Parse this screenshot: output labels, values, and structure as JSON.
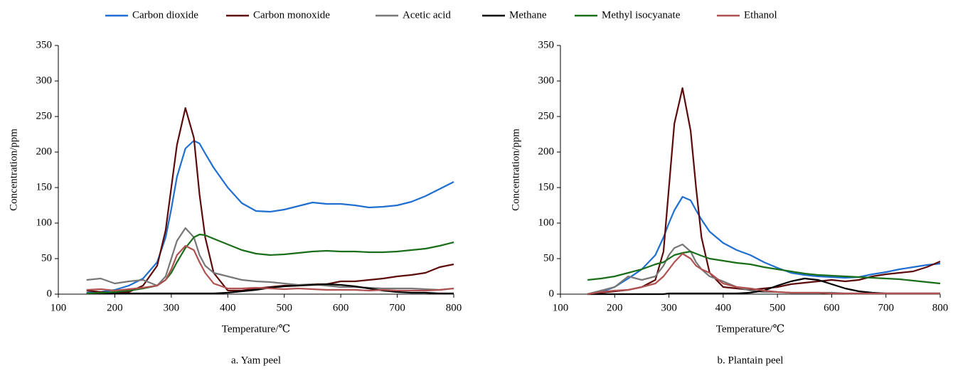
{
  "chart_data": [
    {
      "type": "line",
      "title": "a. Yam peel",
      "x_label": "Temperature/℃",
      "y_label": "Concentration/ppm",
      "xlim": [
        100,
        800
      ],
      "xticks": [
        100,
        200,
        300,
        400,
        500,
        600,
        700,
        800
      ],
      "ylim": [
        0,
        350
      ],
      "yticks": [
        0,
        50,
        100,
        150,
        200,
        250,
        300,
        350
      ],
      "x": [
        150,
        175,
        200,
        225,
        250,
        275,
        290,
        300,
        310,
        325,
        340,
        350,
        360,
        375,
        400,
        425,
        450,
        475,
        500,
        525,
        550,
        575,
        600,
        625,
        650,
        675,
        700,
        725,
        750,
        775,
        800
      ],
      "series": [
        {
          "name": "Carbon dioxide",
          "color": "#1f6fd1",
          "values": [
            2,
            3,
            6,
            12,
            22,
            45,
            80,
            120,
            165,
            205,
            216,
            212,
            198,
            178,
            150,
            128,
            117,
            116,
            119,
            124,
            129,
            127,
            127,
            125,
            122,
            123,
            125,
            130,
            138,
            148,
            158
          ]
        },
        {
          "name": "Carbon monoxide",
          "color": "#5c0a0a",
          "values": [
            5,
            3,
            2,
            3,
            12,
            40,
            90,
            150,
            210,
            262,
            220,
            140,
            80,
            30,
            5,
            5,
            8,
            10,
            12,
            12,
            14,
            14,
            18,
            18,
            20,
            22,
            25,
            27,
            30,
            38,
            42
          ]
        },
        {
          "name": "Acetic acid",
          "color": "#777777",
          "values": [
            20,
            22,
            15,
            18,
            20,
            12,
            25,
            50,
            75,
            93,
            80,
            55,
            40,
            30,
            25,
            20,
            18,
            17,
            15,
            13,
            14,
            12,
            10,
            10,
            9,
            8,
            8,
            8,
            7,
            6,
            8
          ]
        },
        {
          "name": "Methane",
          "color": "#000000",
          "values": [
            1,
            1,
            1,
            1,
            1,
            1,
            1,
            1,
            1,
            1,
            1,
            1,
            1,
            1,
            2,
            4,
            6,
            9,
            11,
            12,
            13,
            14,
            13,
            11,
            8,
            5,
            3,
            2,
            2,
            1,
            1
          ]
        },
        {
          "name": "Methyl isocyanate",
          "color": "#1a6e1a",
          "values": [
            1,
            2,
            3,
            5,
            8,
            12,
            20,
            30,
            45,
            65,
            80,
            84,
            83,
            78,
            70,
            62,
            57,
            55,
            56,
            58,
            60,
            61,
            60,
            60,
            59,
            59,
            60,
            62,
            64,
            68,
            73
          ]
        },
        {
          "name": "Ethanol",
          "color": "#b05050",
          "values": [
            6,
            7,
            5,
            7,
            9,
            12,
            20,
            35,
            55,
            68,
            62,
            45,
            30,
            15,
            8,
            8,
            9,
            8,
            7,
            8,
            7,
            6,
            6,
            6,
            5,
            6,
            5,
            5,
            5,
            6,
            8
          ]
        }
      ]
    },
    {
      "type": "line",
      "title": "b. Plantain peel",
      "x_label": "Temperature/℃",
      "y_label": "Concentration/ppm",
      "xlim": [
        100,
        800
      ],
      "xticks": [
        100,
        200,
        300,
        400,
        500,
        600,
        700,
        800
      ],
      "ylim": [
        0,
        350
      ],
      "yticks": [
        0,
        50,
        100,
        150,
        200,
        250,
        300,
        350
      ],
      "x": [
        150,
        175,
        200,
        225,
        250,
        275,
        290,
        300,
        310,
        325,
        340,
        350,
        360,
        375,
        400,
        425,
        450,
        475,
        500,
        525,
        550,
        575,
        600,
        625,
        650,
        675,
        700,
        725,
        750,
        775,
        800
      ],
      "series": [
        {
          "name": "Carbon dioxide",
          "color": "#1f6fd1",
          "values": [
            0,
            3,
            10,
            22,
            35,
            55,
            80,
            100,
            118,
            137,
            132,
            118,
            105,
            88,
            72,
            62,
            55,
            45,
            37,
            30,
            27,
            25,
            24,
            23,
            24,
            28,
            31,
            35,
            38,
            41,
            43
          ]
        },
        {
          "name": "Carbon monoxide",
          "color": "#5c0a0a",
          "values": [
            0,
            2,
            4,
            6,
            10,
            20,
            60,
            150,
            240,
            290,
            230,
            150,
            80,
            30,
            10,
            8,
            6,
            8,
            10,
            14,
            16,
            18,
            20,
            18,
            20,
            25,
            28,
            30,
            32,
            38,
            46
          ]
        },
        {
          "name": "Acetic acid",
          "color": "#777777",
          "values": [
            0,
            5,
            10,
            25,
            20,
            25,
            40,
            55,
            65,
            70,
            60,
            45,
            35,
            25,
            18,
            10,
            5,
            3,
            3,
            2,
            2,
            2,
            2,
            1,
            1,
            1,
            1,
            1,
            1,
            1,
            1
          ]
        },
        {
          "name": "Methane",
          "color": "#000000",
          "values": [
            0,
            0,
            0,
            0,
            0,
            0,
            0,
            1,
            1,
            1,
            1,
            1,
            1,
            1,
            1,
            1,
            2,
            5,
            12,
            18,
            22,
            20,
            14,
            8,
            4,
            2,
            1,
            1,
            1,
            1,
            1
          ]
        },
        {
          "name": "Methyl isocyanate",
          "color": "#1a6e1a",
          "values": [
            20,
            22,
            25,
            30,
            35,
            42,
            45,
            50,
            55,
            58,
            60,
            57,
            54,
            50,
            47,
            44,
            42,
            38,
            35,
            32,
            29,
            27,
            26,
            25,
            24,
            23,
            22,
            21,
            19,
            17,
            15
          ]
        },
        {
          "name": "Ethanol",
          "color": "#b05050",
          "values": [
            0,
            3,
            5,
            6,
            10,
            15,
            25,
            35,
            45,
            57,
            50,
            40,
            35,
            30,
            15,
            10,
            8,
            5,
            3,
            2,
            2,
            2,
            1,
            1,
            1,
            1,
            1,
            1,
            1,
            1,
            1
          ]
        }
      ]
    }
  ]
}
